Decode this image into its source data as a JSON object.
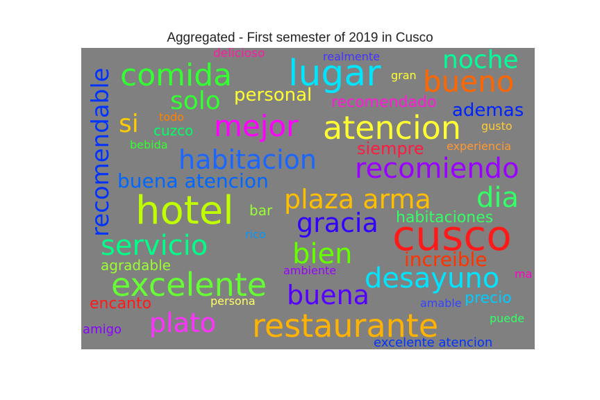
{
  "title": "Aggregated - First semester of 2019 in Cusco",
  "background_color": "#808080",
  "words": [
    {
      "text": "hotel",
      "color": "#bfff00"
    },
    {
      "text": "cusco",
      "color": "#ff1a1a"
    },
    {
      "text": "restaurante",
      "color": "#ffb300"
    },
    {
      "text": "lugar",
      "color": "#00e5ff"
    },
    {
      "text": "atencion",
      "color": "#ffff33"
    },
    {
      "text": "excelente",
      "color": "#66ff33"
    },
    {
      "text": "recomendable",
      "color": "#0033ff"
    },
    {
      "text": "mejor",
      "color": "#ff00ff"
    },
    {
      "text": "comida",
      "color": "#33ff33"
    },
    {
      "text": "bueno",
      "color": "#ff6600"
    },
    {
      "text": "recomiendo",
      "color": "#9900ff"
    },
    {
      "text": "habitacion",
      "color": "#1a66ff"
    },
    {
      "text": "servicio",
      "color": "#00ff88"
    },
    {
      "text": "desayuno",
      "color": "#00e5ff"
    },
    {
      "text": "plaza arma",
      "color": "#ffbf00"
    },
    {
      "text": "plato",
      "color": "#ff33ff"
    },
    {
      "text": "noche",
      "color": "#00ff99"
    },
    {
      "text": "gracia",
      "color": "#3300ff"
    },
    {
      "text": "buena",
      "color": "#5500ff"
    },
    {
      "text": "bien",
      "color": "#66ff00"
    },
    {
      "text": "dia",
      "color": "#33ff66"
    },
    {
      "text": "solo",
      "color": "#33ff33"
    },
    {
      "text": "si",
      "color": "#ffcc00"
    },
    {
      "text": "personal",
      "color": "#ffff33"
    },
    {
      "text": "buena atencion",
      "color": "#0066ff"
    },
    {
      "text": "increible",
      "color": "#ff3300"
    },
    {
      "text": "ademas",
      "color": "#0022ff"
    },
    {
      "text": "siempre",
      "color": "#ff1a40"
    },
    {
      "text": "recomendado",
      "color": "#ff1ad9"
    },
    {
      "text": "habitaciones",
      "color": "#33ff66"
    },
    {
      "text": "encanto",
      "color": "#ff1a1a"
    },
    {
      "text": "precio",
      "color": "#00ccff"
    },
    {
      "text": "agradable",
      "color": "#99ff33"
    },
    {
      "text": "cuzco",
      "color": "#00ff66"
    },
    {
      "text": "bar",
      "color": "#99ff33"
    },
    {
      "text": "excelente atencion",
      "color": "#0033ff"
    },
    {
      "text": "delicioso",
      "color": "#ff1aa3"
    },
    {
      "text": "realmente",
      "color": "#4433ff"
    },
    {
      "text": "gran",
      "color": "#ffff33"
    },
    {
      "text": "todo",
      "color": "#ff8000"
    },
    {
      "text": "gusto",
      "color": "#ffcc33"
    },
    {
      "text": "experiencia",
      "color": "#ff9933"
    },
    {
      "text": "bebida",
      "color": "#33ff33"
    },
    {
      "text": "rico",
      "color": "#0099ff"
    },
    {
      "text": "ambiente",
      "color": "#9900ff"
    },
    {
      "text": "ma",
      "color": "#ff00cc"
    },
    {
      "text": "persona",
      "color": "#ffff66"
    },
    {
      "text": "amable",
      "color": "#3344ff"
    },
    {
      "text": "amigo",
      "color": "#8800ff"
    },
    {
      "text": "puede",
      "color": "#33ff66"
    }
  ]
}
